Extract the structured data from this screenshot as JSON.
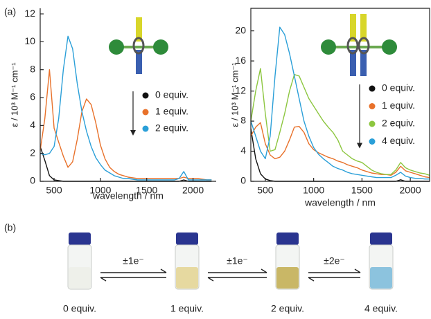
{
  "panel_labels": [
    "(a)",
    "(b)"
  ],
  "chart_data": [
    {
      "type": "line",
      "xlabel": "wavelength / nm",
      "ylabel": "ε / 10³ M⁻¹ cm⁻¹",
      "x": [
        350,
        400,
        450,
        500,
        550,
        600,
        650,
        700,
        750,
        800,
        850,
        900,
        950,
        1000,
        1050,
        1100,
        1150,
        1200,
        1250,
        1300,
        1350,
        1400,
        1450,
        1500,
        1550,
        1600,
        1650,
        1700,
        1750,
        1800,
        1850,
        1900,
        1950,
        2000,
        2050,
        2100,
        2150,
        2200
      ],
      "xlim": [
        350,
        2250
      ],
      "ylim": [
        0,
        12.4
      ],
      "xticks": [
        500,
        1000,
        1500,
        2000
      ],
      "yticks": [
        0,
        2,
        4,
        6,
        8,
        10,
        12
      ],
      "series": [
        {
          "name": "0 equiv.",
          "color": "#111111",
          "values": [
            2.5,
            1.5,
            0.4,
            0.1,
            0.05,
            0,
            0,
            0,
            0,
            0,
            0,
            0,
            0,
            0,
            0,
            0,
            0,
            0,
            0,
            0,
            0,
            0,
            0,
            0,
            0,
            0,
            0,
            0,
            0,
            0,
            0,
            0.1,
            0,
            0,
            0,
            0,
            0,
            0
          ]
        },
        {
          "name": "1 equiv.",
          "color": "#e8712a",
          "values": [
            2.2,
            4.5,
            8.0,
            3.8,
            2.8,
            1.8,
            1.0,
            1.4,
            3.0,
            5.0,
            5.9,
            5.5,
            4.2,
            2.6,
            1.6,
            1.0,
            0.7,
            0.5,
            0.4,
            0.3,
            0.25,
            0.2,
            0.2,
            0.2,
            0.2,
            0.2,
            0.2,
            0.2,
            0.2,
            0.2,
            0.2,
            0.3,
            0.2,
            0.2,
            0.2,
            0.15,
            0.1,
            0.1
          ]
        },
        {
          "name": "2 equiv.",
          "color": "#2a9fd8",
          "values": [
            2.0,
            1.9,
            2.0,
            2.5,
            4.5,
            8.0,
            10.4,
            9.5,
            7.0,
            5.0,
            3.6,
            2.5,
            1.7,
            1.2,
            0.8,
            0.6,
            0.4,
            0.3,
            0.2,
            0.2,
            0.15,
            0.1,
            0.1,
            0.1,
            0.1,
            0.1,
            0.1,
            0.1,
            0.1,
            0.1,
            0.2,
            0.7,
            0.1,
            0.1,
            0.1,
            0.1,
            0.1,
            0.1
          ]
        }
      ]
    },
    {
      "type": "line",
      "xlabel": "wavelength / nm",
      "ylabel": "ε / 10³ M⁻¹ cm⁻¹",
      "x": [
        350,
        400,
        450,
        500,
        550,
        600,
        650,
        700,
        750,
        800,
        850,
        900,
        950,
        1000,
        1050,
        1100,
        1150,
        1200,
        1250,
        1300,
        1350,
        1400,
        1450,
        1500,
        1550,
        1600,
        1650,
        1700,
        1750,
        1800,
        1850,
        1900,
        1950,
        2000,
        2050,
        2100,
        2150,
        2200
      ],
      "xlim": [
        350,
        2200
      ],
      "ylim": [
        0,
        23
      ],
      "xticks": [
        500,
        1000,
        1500,
        2000
      ],
      "yticks": [
        0,
        4,
        8,
        12,
        16,
        20
      ],
      "series": [
        {
          "name": "0 equiv.",
          "color": "#111111",
          "values": [
            7.0,
            3.0,
            1.0,
            0.3,
            0.1,
            0,
            0,
            0,
            0,
            0,
            0,
            0,
            0,
            0,
            0,
            0,
            0,
            0,
            0,
            0,
            0,
            0,
            0,
            0,
            0,
            0,
            0,
            0,
            0,
            0,
            0,
            0.2,
            0,
            0,
            0,
            0,
            0,
            0
          ]
        },
        {
          "name": "1 equiv.",
          "color": "#e8712a",
          "values": [
            6.0,
            7.2,
            7.8,
            5.0,
            3.5,
            3.0,
            3.2,
            4.0,
            5.5,
            7.2,
            7.3,
            6.5,
            5.0,
            4.2,
            3.8,
            3.5,
            3.2,
            3.0,
            2.7,
            2.5,
            2.2,
            2.0,
            1.8,
            1.5,
            1.3,
            1.1,
            1.0,
            0.9,
            0.9,
            0.8,
            1.2,
            2.0,
            1.4,
            1.2,
            1.0,
            0.8,
            0.6,
            0.5
          ]
        },
        {
          "name": "2 equiv.",
          "color": "#8cc63f",
          "values": [
            8.0,
            12.0,
            15.0,
            9.0,
            4.0,
            4.2,
            6.5,
            9.0,
            12.0,
            14.2,
            14.0,
            12.5,
            11.0,
            10.0,
            9.0,
            8.0,
            7.2,
            6.5,
            5.5,
            4.0,
            3.5,
            3.0,
            2.7,
            2.5,
            2.0,
            1.5,
            1.2,
            1.0,
            0.9,
            0.9,
            1.5,
            2.5,
            1.8,
            1.5,
            1.3,
            1.1,
            1.0,
            0.8
          ]
        },
        {
          "name": "4 equiv.",
          "color": "#2a9fd8",
          "values": [
            8.0,
            6.0,
            4.0,
            3.0,
            6.0,
            14.0,
            20.5,
            19.5,
            17.0,
            14.0,
            11.0,
            8.0,
            6.0,
            4.5,
            3.6,
            3.0,
            2.5,
            2.0,
            1.7,
            1.5,
            1.2,
            1.0,
            0.9,
            0.8,
            0.7,
            0.6,
            0.5,
            0.5,
            0.5,
            0.5,
            0.8,
            1.2,
            0.7,
            0.5,
            0.4,
            0.4,
            0.3,
            0.3
          ]
        }
      ]
    }
  ],
  "vials": [
    {
      "label": "0 equiv.",
      "color": "#eef0ea"
    },
    {
      "label": "1 equiv.",
      "color": "#e6d9a0"
    },
    {
      "label": "2 equiv.",
      "color": "#c9b766"
    },
    {
      "label": "4 equiv.",
      "color": "#8cc3de"
    }
  ],
  "transitions": [
    "±1e⁻",
    "±1e⁻",
    "±2e⁻"
  ]
}
